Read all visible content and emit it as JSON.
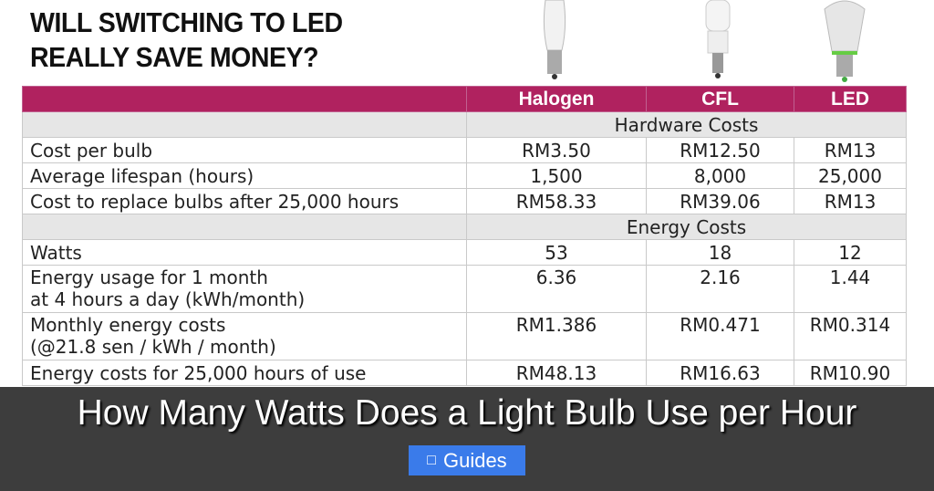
{
  "title_line1": "WILL SWITCHING TO LED",
  "title_line2": "REALLY SAVE MONEY?",
  "table": {
    "headers": [
      "",
      "Halogen",
      "CFL",
      "LED"
    ],
    "section_hardware": "Hardware Costs",
    "section_energy": "Energy Costs",
    "rows": [
      {
        "label": "Cost per bulb",
        "values": [
          "RM3.50",
          "RM12.50",
          "RM13"
        ]
      },
      {
        "label": "Average lifespan (hours)",
        "values": [
          "1,500",
          "8,000",
          "25,000"
        ]
      },
      {
        "label": "Cost to replace bulbs after 25,000 hours",
        "values": [
          "RM58.33",
          "RM39.06",
          "RM13"
        ]
      },
      {
        "label": "Watts",
        "values": [
          "53",
          "18",
          "12"
        ]
      },
      {
        "label": "Energy usage for 1 month",
        "label2": "at 4 hours a day (kWh/month)",
        "values": [
          "6.36",
          "2.16",
          "1.44"
        ]
      },
      {
        "label": "Monthly energy costs",
        "label2": "(@21.8 sen / kWh / month)",
        "values": [
          "RM1.386",
          "RM0.471",
          "RM0.314"
        ]
      },
      {
        "label": "Energy costs for 25,000 hours of use",
        "values": [
          "RM48.13",
          "RM16.63",
          "RM10.90"
        ]
      }
    ]
  },
  "overlay": {
    "headline": "How Many Watts Does a Light Bulb Use per Hour",
    "button_label": "Guides",
    "button_icon": "book-icon"
  },
  "colors": {
    "header": "#b0225f",
    "button": "#3a7bea"
  }
}
